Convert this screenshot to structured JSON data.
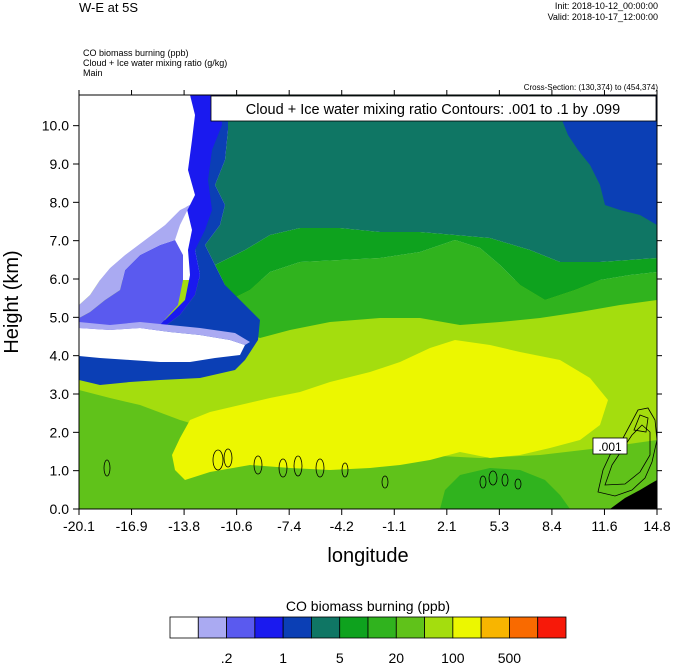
{
  "header": {
    "title": "W-E at 5S",
    "init": "Init: 2018-10-12_00:00:00",
    "valid": "Valid: 2018-10-17_12:00:00",
    "fields": [
      "CO biomass burning   (ppb)",
      "Cloud + Ice water mixing ratio   (g/kg)",
      "Main"
    ],
    "cross_section": "Cross-Section: (130,374) to (454,374)"
  },
  "chart_data": {
    "type": "heatmap",
    "xlabel": "longitude",
    "ylabel": "Height (km)",
    "xlim": [
      -20.1,
      14.8
    ],
    "ylim": [
      0.0,
      10.8
    ],
    "x_ticks": [
      "-20.1",
      "-16.9",
      "-13.8",
      "-10.6",
      "-7.4",
      "-4.2",
      "-1.1",
      "2.1",
      "5.3",
      "8.4",
      "11.6",
      "14.8"
    ],
    "y_ticks": [
      "0.0",
      "1.0",
      "2.0",
      "3.0",
      "4.0",
      "5.0",
      "6.0",
      "7.0",
      "8.0",
      "9.0",
      "10.0"
    ],
    "contour_title": "Cloud + Ice water mixing ratio Contours: .001 to .1 by .099",
    "contour_label": ".001",
    "colorbar": {
      "title": "CO biomass burning  (ppb)",
      "colors": [
        "#ffffff",
        "#aaaaf2",
        "#5a5aef",
        "#1a1aef",
        "#0b3fb5",
        "#0f7664",
        "#0ea21e",
        "#30b31e",
        "#60c21a",
        "#a4dd0e",
        "#ecf700",
        "#f8b500",
        "#f96a00",
        "#f71909"
      ],
      "labels": [
        ".2",
        "1",
        "5",
        "20",
        "100",
        "500"
      ]
    }
  }
}
